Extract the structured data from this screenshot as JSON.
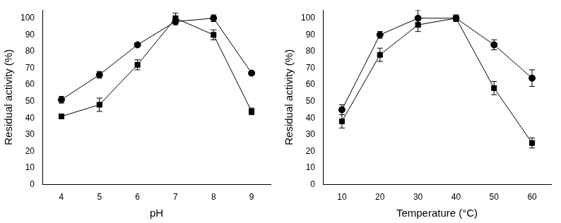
{
  "chart_data": [
    {
      "type": "line",
      "x_label": "pH",
      "y_label": "Residual activity (%)",
      "x": [
        4,
        5,
        6,
        7,
        8,
        9
      ],
      "series": [
        {
          "color": "#000000",
          "marker": "circle",
          "values": [
            51,
            66,
            84,
            98,
            100,
            67
          ],
          "errors": [
            2,
            2,
            1,
            2,
            2,
            1
          ]
        },
        {
          "color": "#000000",
          "marker": "square",
          "values": [
            41,
            48,
            72,
            100,
            90,
            44
          ],
          "errors": [
            1,
            4,
            3,
            3,
            3,
            2
          ]
        }
      ],
      "xlim": [
        3.5,
        9.5
      ],
      "xticks": [
        4,
        5,
        6,
        7,
        8,
        9
      ],
      "ylim": [
        0,
        105
      ],
      "yticks": [
        0,
        10,
        20,
        30,
        40,
        50,
        60,
        70,
        80,
        90,
        100
      ],
      "grid": false
    },
    {
      "type": "line",
      "x_label": "Temperature (°C)",
      "y_label": "Residual activity (%)",
      "x": [
        10,
        20,
        30,
        40,
        50,
        60
      ],
      "series": [
        {
          "color": "#000000",
          "marker": "circle",
          "values": [
            45,
            90,
            100,
            100,
            84,
            64
          ],
          "errors": [
            3,
            2,
            5,
            2,
            3,
            5
          ]
        },
        {
          "color": "#000000",
          "marker": "square",
          "values": [
            38,
            78,
            96,
            100,
            58,
            25
          ],
          "errors": [
            4,
            4,
            4,
            1,
            4,
            3
          ]
        }
      ],
      "xlim": [
        5,
        65
      ],
      "xticks": [
        10,
        20,
        30,
        40,
        50,
        60
      ],
      "ylim": [
        0,
        105
      ],
      "yticks": [
        0,
        10,
        20,
        30,
        40,
        50,
        60,
        70,
        80,
        90,
        100
      ],
      "grid": false
    }
  ]
}
